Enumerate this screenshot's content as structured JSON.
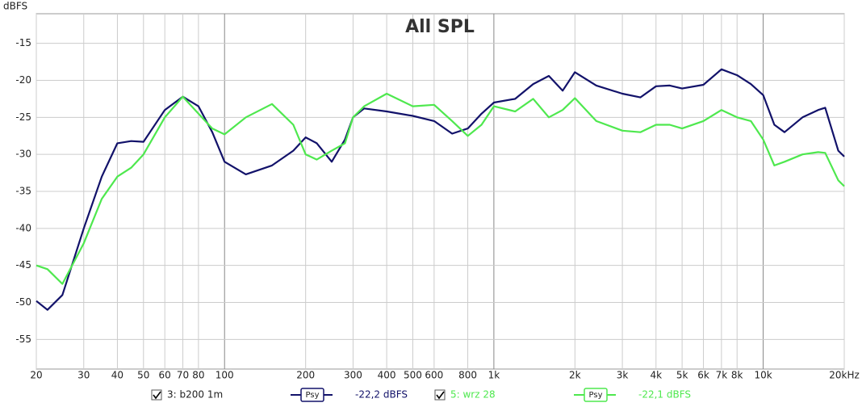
{
  "chart_data": {
    "type": "line",
    "title": "All SPL",
    "y_label": "dBFS",
    "log_x": true,
    "grid": true,
    "xlim": [
      20,
      20000
    ],
    "ylim": [
      -59,
      -11
    ],
    "xticks": [
      20,
      30,
      40,
      50,
      60,
      70,
      80,
      100,
      200,
      300,
      400,
      500,
      600,
      800,
      {
        "value": 1000,
        "label": "1k"
      },
      {
        "value": 2000,
        "label": "2k"
      },
      {
        "value": 3000,
        "label": "3k"
      },
      {
        "value": 4000,
        "label": "4k"
      },
      {
        "value": 5000,
        "label": "5k"
      },
      {
        "value": 6000,
        "label": "6k"
      },
      {
        "value": 7000,
        "label": "7k"
      },
      {
        "value": 8000,
        "label": "8k"
      },
      {
        "value": 10000,
        "label": "10k"
      },
      {
        "value": 20000,
        "label": "20kHz"
      }
    ],
    "yticks": [
      -15,
      -20,
      -25,
      -30,
      -35,
      -40,
      -45,
      -50,
      -55
    ],
    "x": [
      20,
      22,
      25,
      30,
      35,
      40,
      45,
      50,
      60,
      70,
      80,
      90,
      100,
      120,
      150,
      180,
      200,
      220,
      250,
      280,
      300,
      330,
      400,
      500,
      600,
      700,
      800,
      900,
      1000,
      1200,
      1400,
      1600,
      1800,
      2000,
      2400,
      3000,
      3500,
      4000,
      4500,
      5000,
      6000,
      7000,
      8000,
      9000,
      10000,
      11000,
      12000,
      14000,
      16000,
      17000,
      19000,
      20000
    ],
    "series": [
      {
        "name": "3: b200 1m",
        "color": "#12126a",
        "smoothing": "Psy",
        "level": "-22,2 dBFS",
        "values": [
          -49.8,
          -51,
          -49,
          -40,
          -33,
          -28.5,
          -28.2,
          -28.3,
          -24,
          -22.2,
          -23.5,
          -27,
          -31,
          -32.7,
          -31.5,
          -29.5,
          -27.7,
          -28.5,
          -31,
          -28,
          -25,
          -23.8,
          -24.2,
          -24.8,
          -25.5,
          -27.2,
          -26.5,
          -24.5,
          -23,
          -22.5,
          -20.5,
          -19.4,
          -21.4,
          -18.9,
          -20.7,
          -21.8,
          -22.3,
          -20.8,
          -20.7,
          -21.1,
          -20.6,
          -18.5,
          -19.3,
          -20.5,
          -22,
          -26,
          -27,
          -25,
          -24,
          -23.7,
          -29.5,
          -30.3
        ]
      },
      {
        "name": "5: wrz 28",
        "color": "#4ee84e",
        "smoothing": "Psy",
        "level": "-22,1 dBFS",
        "values": [
          -45,
          -45.5,
          -47.5,
          -42,
          -36,
          -33,
          -31.8,
          -30,
          -25,
          -22.2,
          -24.5,
          -26.5,
          -27.3,
          -25,
          -23.2,
          -26,
          -30,
          -30.7,
          -29.5,
          -28.5,
          -25,
          -23.5,
          -21.8,
          -23.5,
          -23.3,
          -25.5,
          -27.5,
          -26,
          -23.5,
          -24.2,
          -22.5,
          -25,
          -24,
          -22.4,
          -25.5,
          -26.8,
          -27,
          -26,
          -26,
          -26.5,
          -25.5,
          -24,
          -25,
          -25.5,
          -28,
          -31.5,
          -31,
          -30,
          -29.7,
          -29.8,
          -33.5,
          -34.3
        ]
      }
    ]
  }
}
